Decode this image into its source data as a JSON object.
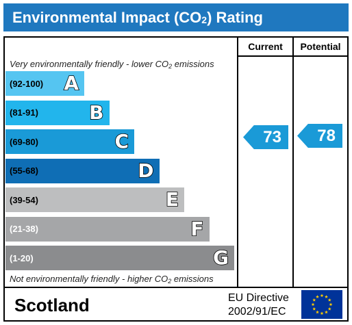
{
  "header": {
    "title_pre": "Environmental Impact (CO",
    "title_sub": "2",
    "title_post": ") Rating"
  },
  "columns": {
    "current": "Current",
    "potential": "Potential"
  },
  "captions": {
    "top_pre": "Very environmentally friendly - lower CO",
    "top_sub": "2",
    "top_post": " emissions",
    "bottom_pre": "Not environmentally friendly - higher CO",
    "bottom_sub": "2",
    "bottom_post": " emissions"
  },
  "chart_data": {
    "type": "bar",
    "bands": [
      {
        "range": "(92-100)",
        "letter": "A",
        "color": "#55c5f1",
        "text_color": "#000000"
      },
      {
        "range": "(81-91)",
        "letter": "B",
        "color": "#22b5ec",
        "text_color": "#000000"
      },
      {
        "range": "(69-80)",
        "letter": "C",
        "color": "#1a9ad7",
        "text_color": "#000000"
      },
      {
        "range": "(55-68)",
        "letter": "D",
        "color": "#0f6eb5",
        "text_color": "#000000"
      },
      {
        "range": "(39-54)",
        "letter": "E",
        "color": "#bdbebf",
        "text_color": "#000000"
      },
      {
        "range": "(21-38)",
        "letter": "F",
        "color": "#a5a6a8",
        "text_color": "#ffffff"
      },
      {
        "range": "(1-20)",
        "letter": "G",
        "color": "#8b8c8e",
        "text_color": "#ffffff"
      }
    ],
    "current": {
      "value": 73,
      "band": "C",
      "color": "#1a9ad7"
    },
    "potential": {
      "value": 78,
      "band": "C",
      "color": "#1a9ad7"
    }
  },
  "footer": {
    "region": "Scotland",
    "directive_line1": "EU Directive",
    "directive_line2": "2002/91/EC"
  },
  "icons": {
    "flag": "eu-flag-icon"
  }
}
